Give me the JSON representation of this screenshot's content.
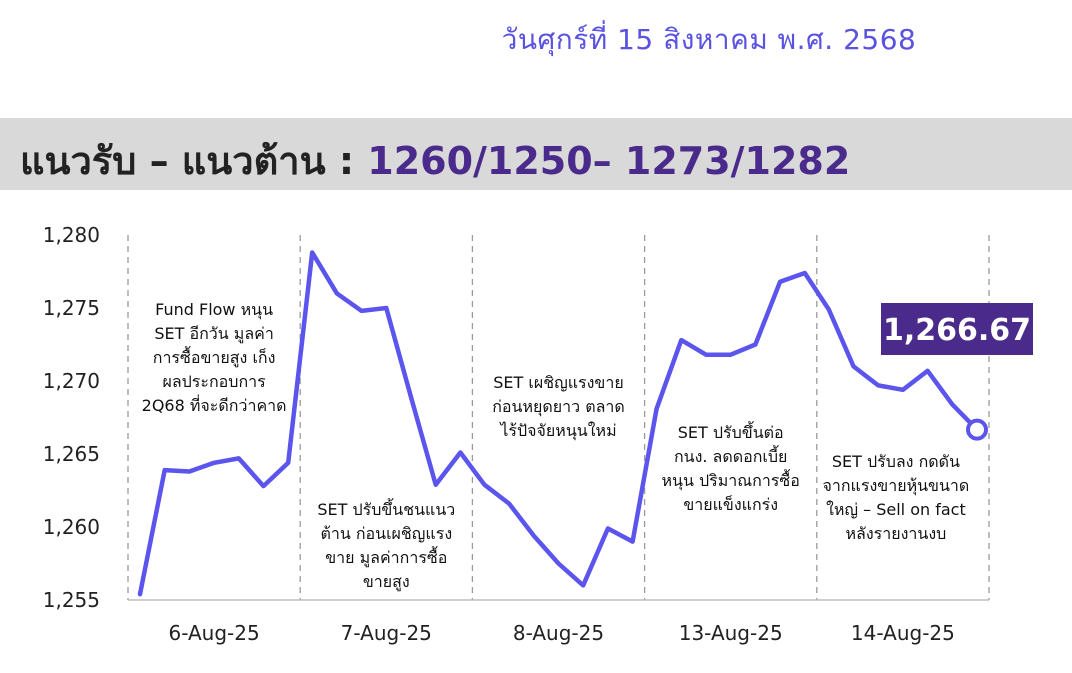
{
  "header": {
    "date": "วันศุกร์ที่ 15 สิงหาคม พ.ศ. 2568"
  },
  "banner": {
    "title": "แนวรับ – แนวต้าน : ",
    "values": "1260/1250– 1273/1282"
  },
  "colors": {
    "line": "#5b55ee",
    "accent_box": "#4a2a8a",
    "banner_bg": "#d9d9d9",
    "date_text": "#5a52e0"
  },
  "chart_data": {
    "type": "line",
    "title": "",
    "xlabel": "",
    "ylabel": "",
    "ylim": [
      1255,
      1280
    ],
    "yticks": [
      "1,255",
      "1,260",
      "1,265",
      "1,270",
      "1,275",
      "1,280"
    ],
    "categories": [
      "6-Aug-25",
      "7-Aug-25",
      "8-Aug-25",
      "13-Aug-25",
      "14-Aug-25"
    ],
    "grid": "vertical dashed separators between days",
    "series": [
      {
        "values": [
          [
            1255.4,
            1263.9,
            1263.8,
            1264.4,
            1264.7,
            1262.8,
            1264.4
          ],
          [
            1278.8,
            1276.0,
            1274.8,
            1275.0,
            1268.9,
            1262.9,
            1265.1
          ],
          [
            1262.9,
            1261.6,
            1259.4,
            1257.5,
            1256.0,
            1259.9,
            1259.0
          ],
          [
            1268.1,
            1272.8,
            1271.8,
            1271.8,
            1272.5,
            1276.8,
            1277.4
          ],
          [
            1274.9,
            1271.0,
            1269.7,
            1269.4,
            1270.7,
            1268.4,
            1266.67
          ]
        ]
      }
    ],
    "last_value_label": "1,266.67",
    "annotations": [
      [
        "Fund Flow หนุน",
        "SET อีกวัน มูลค่า",
        "การซื้อขายสูง เก็ง",
        "ผลประกอบการ",
        "2Q68 ที่จะดีกว่าคาด"
      ],
      [
        "SET ปรับขึ้นชนแนว",
        "ต้าน ก่อนเผชิญแรง",
        "ขาย มูลค่าการซื้อ",
        "ขายสูง"
      ],
      [
        "SET เผชิญแรงขาย",
        "ก่อนหยุดยาว ตลาด",
        "ไร้ปัจจัยหนุนใหม่"
      ],
      [
        "SET ปรับขึ้นต่อ",
        "กนง. ลดดอกเบี้ย",
        "หนุน ปริมาณการซื้อ",
        "ขายแข็งแกร่ง"
      ],
      [
        "SET ปรับลง กดดัน",
        "จากแรงขายหุ้นขนาด",
        "ใหญ่ – Sell on fact",
        "หลังรายงานงบ"
      ]
    ]
  }
}
